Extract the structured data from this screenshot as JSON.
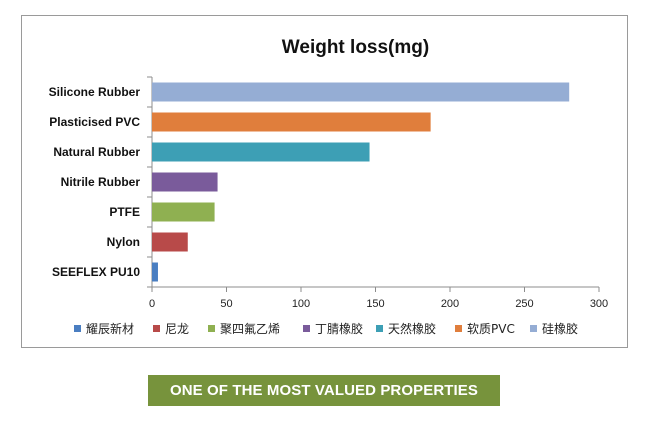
{
  "chart_data": {
    "type": "bar",
    "orientation": "horizontal",
    "title": "Weight loss(mg)",
    "xlim": [
      0,
      300
    ],
    "xticks": [
      0,
      50,
      100,
      150,
      200,
      250,
      300
    ],
    "grid": false,
    "legend_position": "bottom",
    "categories": [
      "Silicone Rubber",
      "Plasticised PVC",
      "Natural Rubber",
      "Nitrile Rubber",
      "PTFE",
      "Nylon",
      "SEEFLEX PU10"
    ],
    "values": [
      280,
      187,
      146,
      44,
      42,
      24,
      4
    ],
    "colors": [
      "#95add4",
      "#e07e3c",
      "#3d9fb5",
      "#7a5b9b",
      "#8fb051",
      "#b84a49",
      "#4a7ec1"
    ],
    "legend": [
      {
        "label": "耀辰新材",
        "color": "#4a7ec1"
      },
      {
        "label": "尼龙",
        "color": "#b84a49"
      },
      {
        "label": "聚四氟乙烯",
        "color": "#8fb051"
      },
      {
        "label": "丁腈橡胶",
        "color": "#7a5b9b"
      },
      {
        "label": "天然橡胶",
        "color": "#3d9fb5"
      },
      {
        "label": "软质PVC",
        "color": "#e07e3c"
      },
      {
        "label": "硅橡胶",
        "color": "#95add4"
      }
    ]
  },
  "banner": {
    "text": "ONE OF THE MOST VALUED PROPERTIES",
    "color": "#77933c"
  }
}
